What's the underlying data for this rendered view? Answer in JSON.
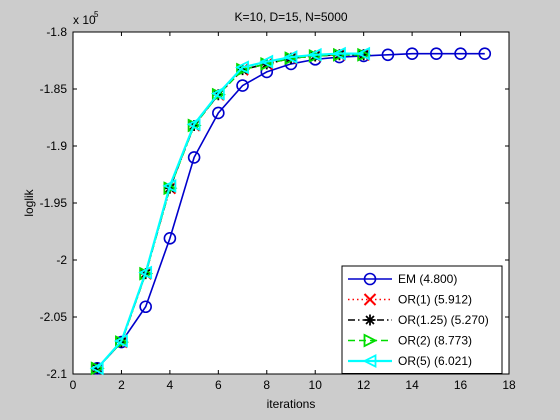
{
  "chart_data": {
    "type": "line",
    "title": "K=10, D=15, N=5000",
    "xlabel": "iterations",
    "ylabel": "loglik",
    "exponent_base": "x 10",
    "exponent_power": "5",
    "xlim": [
      0,
      18
    ],
    "ylim": [
      -2.1,
      -1.8
    ],
    "xticks": [
      0,
      2,
      4,
      6,
      8,
      10,
      12,
      14,
      16,
      18
    ],
    "xtick_labels": [
      "0",
      "2",
      "4",
      "6",
      "8",
      "10",
      "12",
      "14",
      "16",
      "18"
    ],
    "yticks": [
      -2.1,
      -2.05,
      -2.0,
      -1.95,
      -1.9,
      -1.85,
      -1.8
    ],
    "ytick_labels": [
      "-2.1",
      "-2.05",
      "-2",
      "-1.95",
      "-1.9",
      "-1.85",
      "-1.8"
    ],
    "grid": false,
    "legend_position": "bottom-right",
    "series": [
      {
        "name": "EM (4.800)",
        "color": "#0000cc",
        "marker": "circle",
        "linestyle": "solid",
        "x": [
          1,
          2,
          3,
          4,
          5,
          6,
          7,
          8,
          9,
          10,
          11,
          12,
          13,
          14,
          15,
          16,
          17
        ],
        "y": [
          -2.095,
          -2.072,
          -2.041,
          -1.981,
          -1.91,
          -1.871,
          -1.847,
          -1.835,
          -1.828,
          -1.824,
          -1.822,
          -1.821,
          -1.82,
          -1.819,
          -1.819,
          -1.819,
          -1.819
        ]
      },
      {
        "name": "OR(1) (5.912)",
        "color": "#ff0000",
        "marker": "x",
        "linestyle": "dotted",
        "x": [
          1,
          2,
          3,
          4,
          5,
          6,
          7,
          8,
          9,
          10,
          11,
          12
        ],
        "y": [
          -2.095,
          -2.072,
          -2.012,
          -1.937,
          -1.882,
          -1.855,
          -1.833,
          -1.828,
          -1.823,
          -1.821,
          -1.82,
          -1.82
        ]
      },
      {
        "name": "OR(1.25) (5.270)",
        "color": "#000000",
        "marker": "star",
        "linestyle": "dashdot",
        "x": [
          1,
          2,
          3,
          4,
          5,
          6,
          7,
          8,
          9,
          10,
          11,
          12
        ],
        "y": [
          -2.095,
          -2.072,
          -2.012,
          -1.937,
          -1.882,
          -1.855,
          -1.833,
          -1.828,
          -1.823,
          -1.821,
          -1.82,
          -1.82
        ]
      },
      {
        "name": "OR(2) (8.773)",
        "color": "#00dd00",
        "marker": "triangle-right",
        "linestyle": "dashed",
        "x": [
          1,
          2,
          3,
          4,
          5,
          6,
          7,
          8,
          9,
          10,
          11,
          12
        ],
        "y": [
          -2.095,
          -2.072,
          -2.012,
          -1.937,
          -1.882,
          -1.855,
          -1.833,
          -1.828,
          -1.823,
          -1.821,
          -1.82,
          -1.82
        ]
      },
      {
        "name": "OR(5) (6.021)",
        "color": "#00ffff",
        "marker": "triangle-left",
        "linestyle": "solid",
        "x": [
          1,
          2,
          3,
          4,
          5,
          6,
          7,
          8,
          9,
          10,
          11,
          12
        ],
        "y": [
          -2.095,
          -2.071,
          -2.011,
          -1.935,
          -1.881,
          -1.854,
          -1.831,
          -1.826,
          -1.822,
          -1.82,
          -1.819,
          -1.819
        ]
      }
    ]
  }
}
